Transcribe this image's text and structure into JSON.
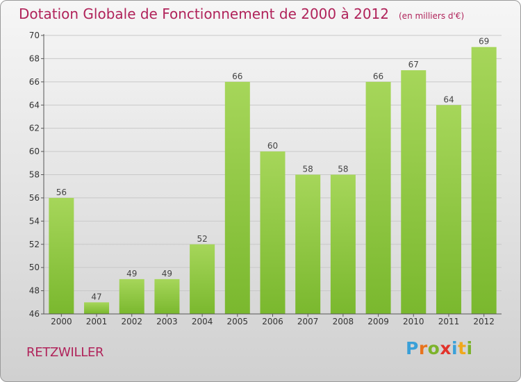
{
  "header": {
    "title": "Dotation Globale de Fonctionnement de 2000 à 2012",
    "unit": "(en milliers d'€)"
  },
  "footer": {
    "commune": "RETZWILLER",
    "logo_letters": [
      "P",
      "r",
      "o",
      "x",
      "i",
      "t",
      "i"
    ],
    "logo_colors": [
      "#3aa0d8",
      "#e8731d",
      "#7cb32b",
      "#e2332b",
      "#3aa0d8",
      "#f0a81c",
      "#7cb32b"
    ]
  },
  "chart_data": {
    "type": "bar",
    "categories": [
      "2000",
      "2001",
      "2002",
      "2003",
      "2004",
      "2005",
      "2006",
      "2007",
      "2008",
      "2009",
      "2010",
      "2011",
      "2012"
    ],
    "values": [
      56,
      47,
      49,
      49,
      52,
      66,
      60,
      58,
      58,
      66,
      67,
      64,
      69
    ],
    "ylim": [
      46,
      70
    ],
    "yticks": [
      46,
      48,
      50,
      52,
      54,
      56,
      58,
      60,
      62,
      64,
      66,
      68,
      70
    ],
    "grid": true,
    "bar_color": "#7ab82e",
    "bar_color_light": "#a6d65a"
  }
}
